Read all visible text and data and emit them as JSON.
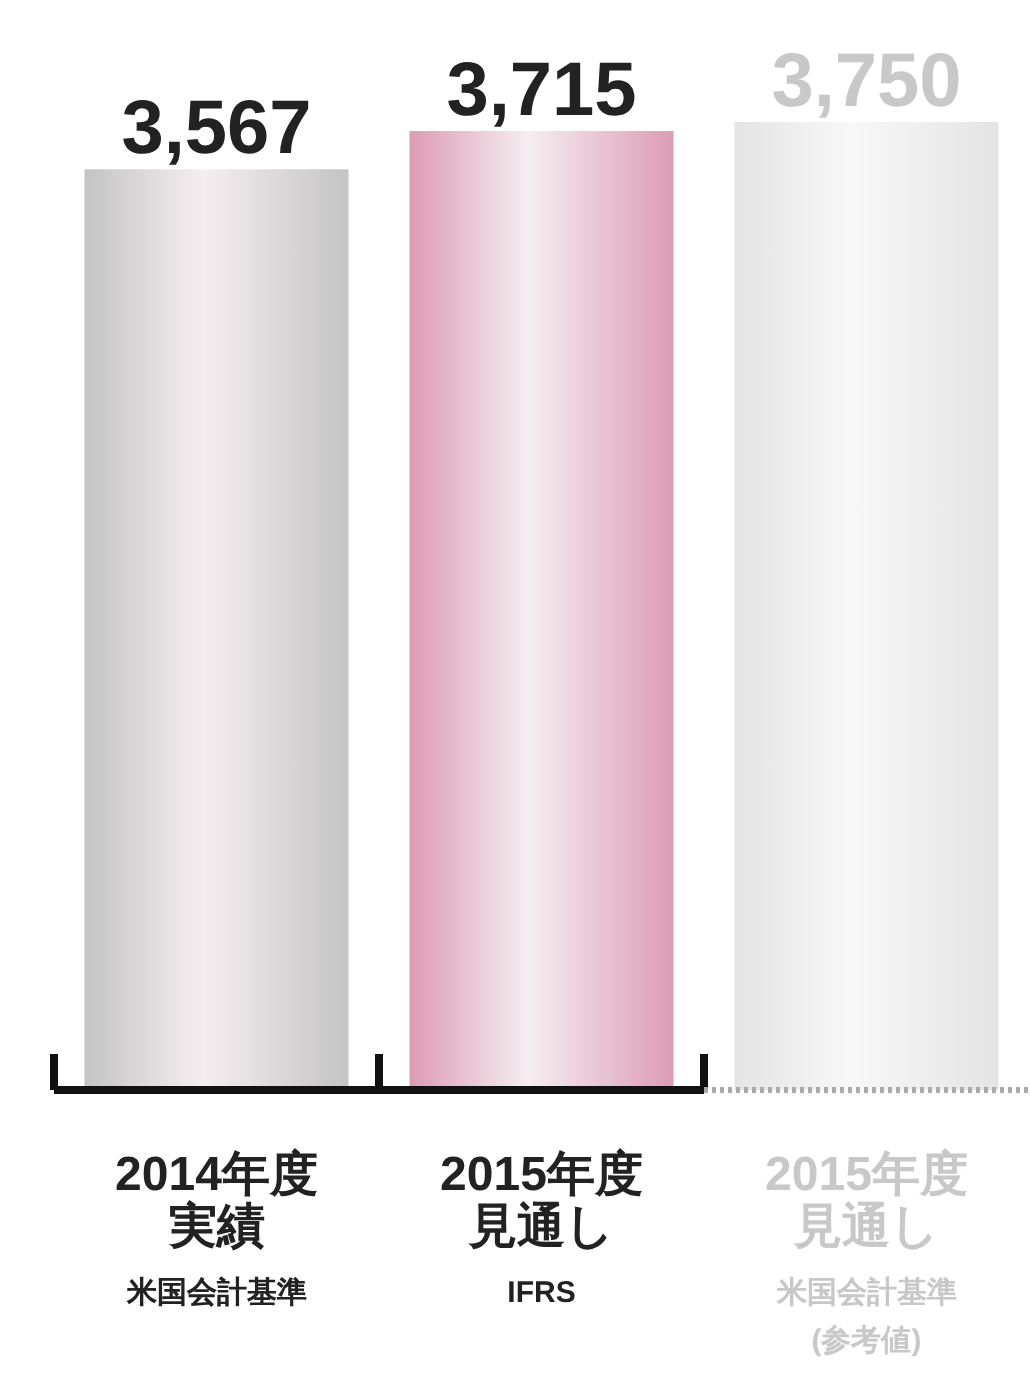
{
  "chart_data": {
    "type": "bar",
    "categories": [
      "2014年度実績",
      "2015年度見通し",
      "2015年度見通し"
    ],
    "values": [
      3567,
      3715,
      3750
    ],
    "value_labels": [
      "3,567",
      "3,715",
      "3,750"
    ],
    "colors": [
      "#c4c4c4",
      "#dc9cb4",
      "#e4e4e4"
    ],
    "annotations": [
      "米国会計基準",
      "IFRS",
      "米国会計基準(参考値)"
    ]
  }
}
